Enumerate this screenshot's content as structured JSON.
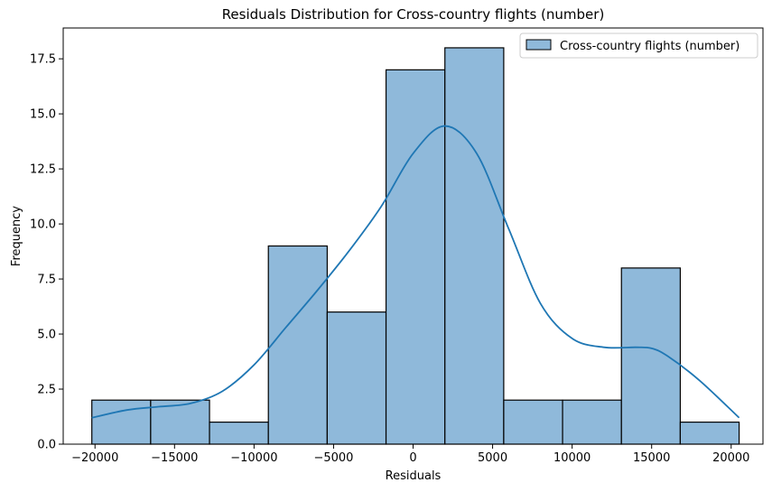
{
  "chart_data": {
    "type": "histogram",
    "title": "Residuals Distribution for Cross-country flights (number)",
    "xlabel": "Residuals",
    "ylabel": "Frequency",
    "xlim": [
      -22000,
      22000
    ],
    "ylim": [
      0,
      18.9
    ],
    "x_ticks": [
      -20000,
      -15000,
      -10000,
      -5000,
      0,
      5000,
      10000,
      15000,
      20000
    ],
    "x_tick_labels": [
      "−20000",
      "−15000",
      "−10000",
      "−5000",
      "0",
      "5000",
      "10000",
      "15000",
      "20000"
    ],
    "y_ticks": [
      0,
      2.5,
      5,
      7.5,
      10,
      12.5,
      15,
      17.5
    ],
    "y_tick_labels": [
      "0.0",
      "2.5",
      "5.0",
      "7.5",
      "10.0",
      "12.5",
      "15.0",
      "17.5"
    ],
    "bins": [
      {
        "start": -20200,
        "end": -16500,
        "count": 2
      },
      {
        "start": -16500,
        "end": -12800,
        "count": 2
      },
      {
        "start": -12800,
        "end": -9100,
        "count": 1
      },
      {
        "start": -9100,
        "end": -5400,
        "count": 9
      },
      {
        "start": -5400,
        "end": -1700,
        "count": 6
      },
      {
        "start": -1700,
        "end": 2000,
        "count": 17
      },
      {
        "start": 2000,
        "end": 5700,
        "count": 18
      },
      {
        "start": 5700,
        "end": 9400,
        "count": 2
      },
      {
        "start": 9400,
        "end": 13100,
        "count": 2
      },
      {
        "start": 13100,
        "end": 16800,
        "count": 8
      },
      {
        "start": 16800,
        "end": 20500,
        "count": 1
      }
    ],
    "kde": {
      "x": [
        -20200,
        -18000,
        -16000,
        -14000,
        -12000,
        -10000,
        -8000,
        -6000,
        -4000,
        -2000,
        0,
        2000,
        4000,
        6000,
        8000,
        10000,
        12000,
        14000,
        15000,
        16000,
        18000,
        20500
      ],
      "y": [
        1.2,
        1.55,
        1.7,
        1.85,
        2.4,
        3.6,
        5.3,
        7.0,
        8.8,
        10.8,
        13.2,
        14.45,
        13.2,
        9.8,
        6.4,
        4.8,
        4.4,
        4.4,
        4.35,
        4.0,
        2.9,
        1.2
      ]
    },
    "series": [
      {
        "name": "Cross-country flights (number)",
        "color": "#1f77b4",
        "fill": "#8fb9da"
      }
    ],
    "legend": {
      "placement": "top-right",
      "label": "Cross-country flights (number)"
    },
    "grid": false
  }
}
